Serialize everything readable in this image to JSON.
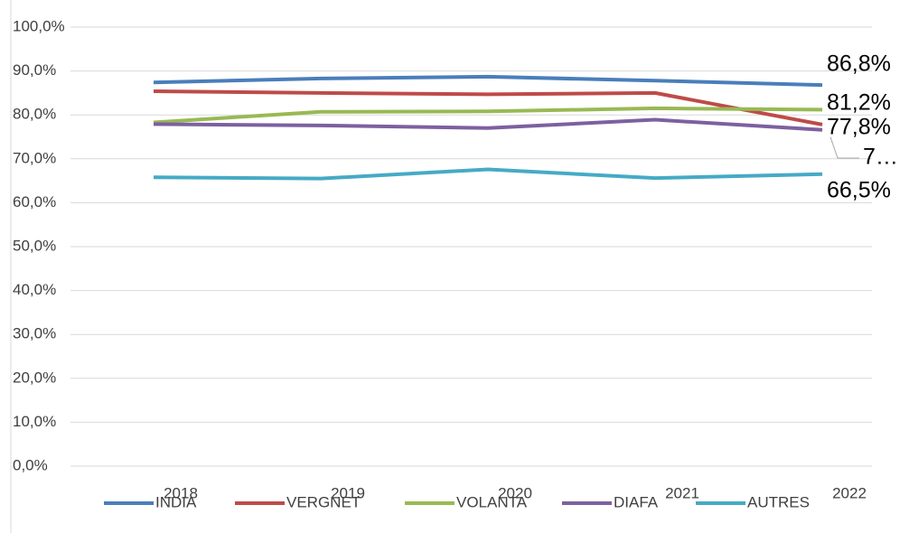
{
  "chart_data": {
    "type": "line",
    "categories": [
      "2018",
      "2019",
      "2020",
      "2021",
      "2022"
    ],
    "series": [
      {
        "name": "INDIA",
        "color": "#4a7ebb",
        "values": [
          87.4,
          88.3,
          88.7,
          87.8,
          86.8
        ],
        "value_labels": [
          null,
          null,
          null,
          null,
          "86,8%"
        ]
      },
      {
        "name": "VERGNET",
        "color": "#be4b48",
        "values": [
          85.4,
          85.0,
          84.7,
          85.0,
          77.8
        ],
        "value_labels": [
          null,
          null,
          null,
          null,
          "77,8%"
        ]
      },
      {
        "name": "VOLANTA",
        "color": "#98b954",
        "values": [
          78.3,
          80.7,
          80.8,
          81.5,
          81.2
        ],
        "value_labels": [
          null,
          null,
          null,
          null,
          "81,2%"
        ]
      },
      {
        "name": "DIAFA",
        "color": "#7d60a0",
        "values": [
          77.9,
          77.6,
          77.0,
          78.9,
          76.6
        ],
        "value_labels": [
          null,
          null,
          null,
          null,
          "7…"
        ]
      },
      {
        "name": "AUTRES",
        "color": "#46aac5",
        "values": [
          65.8,
          65.5,
          67.6,
          65.6,
          66.5
        ],
        "value_labels": [
          null,
          null,
          null,
          null,
          "66,5%"
        ]
      }
    ],
    "ylim": [
      0,
      100
    ],
    "yticks": [
      {
        "value": 0,
        "label": "0,0%"
      },
      {
        "value": 10,
        "label": "10,0%"
      },
      {
        "value": 20,
        "label": "20,0%"
      },
      {
        "value": 30,
        "label": "30,0%"
      },
      {
        "value": 40,
        "label": "40,0%"
      },
      {
        "value": 50,
        "label": "50,0%"
      },
      {
        "value": 60,
        "label": "60,0%"
      },
      {
        "value": 70,
        "label": "70,0%"
      },
      {
        "value": 80,
        "label": "80,0%"
      },
      {
        "value": 90,
        "label": "90,0%"
      },
      {
        "value": 100,
        "label": "100,0%"
      }
    ],
    "grid": true,
    "legend": "bottom"
  }
}
